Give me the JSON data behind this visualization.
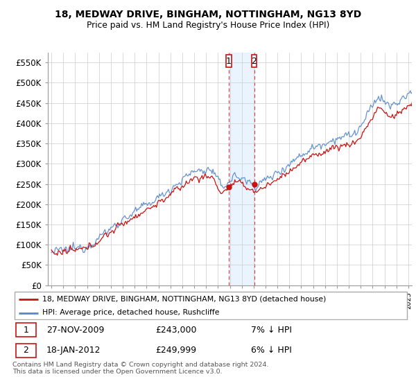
{
  "title": "18, MEDWAY DRIVE, BINGHAM, NOTTINGHAM, NG13 8YD",
  "subtitle": "Price paid vs. HM Land Registry's House Price Index (HPI)",
  "ylim": [
    0,
    575000
  ],
  "yticks": [
    0,
    50000,
    100000,
    150000,
    200000,
    250000,
    300000,
    350000,
    400000,
    450000,
    500000,
    550000
  ],
  "ytick_labels": [
    "£0",
    "£50K",
    "£100K",
    "£150K",
    "£200K",
    "£250K",
    "£300K",
    "£350K",
    "£400K",
    "£450K",
    "£500K",
    "£550K"
  ],
  "hpi_color": "#5588cc",
  "price_color": "#cc1111",
  "sale1_year": 2009.917,
  "sale1_price": 243000,
  "sale2_year": 2012.042,
  "sale2_price": 249999,
  "legend_line1": "18, MEDWAY DRIVE, BINGHAM, NOTTINGHAM, NG13 8YD (detached house)",
  "legend_line2": "HPI: Average price, detached house, Rushcliffe",
  "table_row1_num": "1",
  "table_row1_date": "27-NOV-2009",
  "table_row1_price": "£243,000",
  "table_row1_hpi": "7% ↓ HPI",
  "table_row2_num": "2",
  "table_row2_date": "18-JAN-2012",
  "table_row2_price": "£249,999",
  "table_row2_hpi": "6% ↓ HPI",
  "footer": "Contains HM Land Registry data © Crown copyright and database right 2024.\nThis data is licensed under the Open Government Licence v3.0.",
  "grid_color": "#cccccc",
  "span_color": "#ddeeff"
}
